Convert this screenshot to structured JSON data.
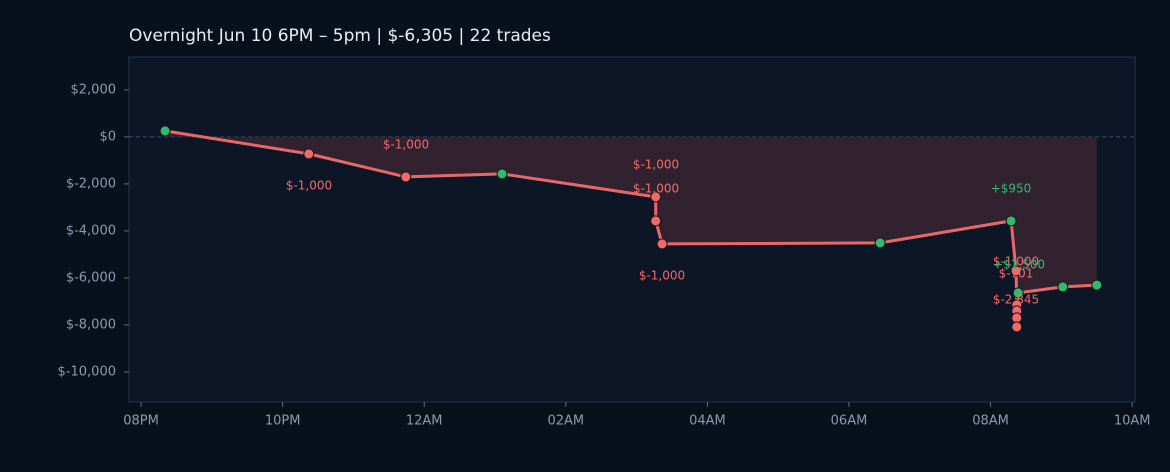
{
  "chart_data": {
    "type": "line",
    "title": "Overnight  Jun 10 6PM – 5pm  |  $-6,305  |  22 trades",
    "x": [
      20.34,
      22.37,
      23.74,
      25.1,
      27.27,
      27.27,
      27.36,
      30.44,
      32.29,
      32.36,
      32.37,
      32.37,
      32.37,
      32.37,
      32.39,
      33.02,
      33.5
    ],
    "series": [
      {
        "color": "#e8686a",
        "values": [
          255,
          -723,
          -1702,
          -1574,
          -2553,
          -3574,
          -4553,
          -4511,
          -3574,
          -5702,
          -7149,
          -7404,
          -7702,
          -8085,
          -6638,
          -6383,
          -6305
        ]
      }
    ],
    "up_color": "#2fba6e",
    "down_color": "#f0696b",
    "fill_color": "#3a2433",
    "xlim": [
      19.83,
      34.04
    ],
    "xticks": [
      {
        "value": 20,
        "label": "08PM"
      },
      {
        "value": 22,
        "label": "10PM"
      },
      {
        "value": 24,
        "label": "12AM"
      },
      {
        "value": 26,
        "label": "02AM"
      },
      {
        "value": 28,
        "label": "04AM"
      },
      {
        "value": 30,
        "label": "06AM"
      },
      {
        "value": 32,
        "label": "08AM"
      },
      {
        "value": 34,
        "label": "10AM"
      }
    ],
    "ylim": [
      -11280,
      3400
    ],
    "yticks": [
      {
        "value": 2000,
        "label": "$2,000"
      },
      {
        "value": 0,
        "label": "$0"
      },
      {
        "value": -2000,
        "label": "$-2,000"
      },
      {
        "value": -4000,
        "label": "$-4,000"
      },
      {
        "value": -6000,
        "label": "$-6,000"
      },
      {
        "value": -8000,
        "label": "$-8,000"
      },
      {
        "value": -10000,
        "label": "$-10,000"
      }
    ],
    "annotations": [
      {
        "text": "$-1,000",
        "color": "#f0696b"
      },
      {
        "text": "$-1,000",
        "color": "#f0696b"
      },
      {
        "text": "$-1,000",
        "color": "#f0696b"
      },
      {
        "text": "$-1,000",
        "color": "#f0696b"
      },
      {
        "text": "$-1,000",
        "color": "#f0696b"
      },
      {
        "text": "+$950",
        "color": "#2fba6e"
      },
      {
        "text": "$-1,000",
        "color": "#f0696b"
      },
      {
        "text": "+$1,500",
        "color": "#2fba6e"
      },
      {
        "text": "$-701",
        "color": "#f0696b"
      },
      {
        "text": "$-2,845",
        "color": "#f0696b"
      }
    ]
  }
}
